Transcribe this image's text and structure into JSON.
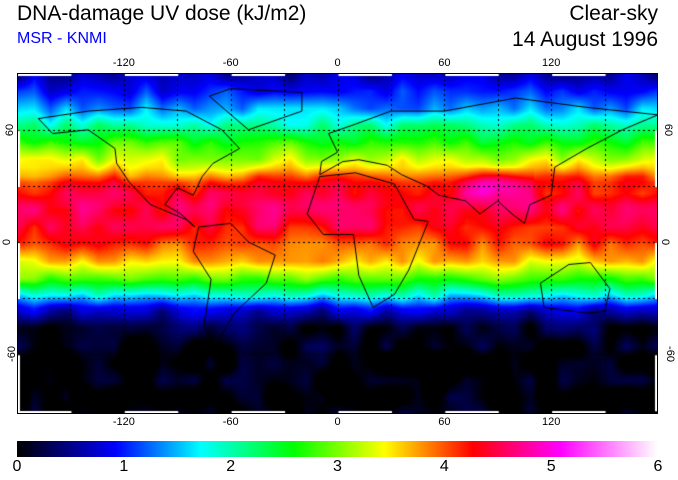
{
  "header": {
    "title": "DNA-damage UV dose (kJ/m2)",
    "source": "MSR - KNMI",
    "condition": "Clear-sky",
    "date": "14 August 1996"
  },
  "map": {
    "lon_ticks": [
      "-120",
      "-60",
      "0",
      "60",
      "120"
    ],
    "lon_values": [
      -120,
      -60,
      0,
      60,
      120
    ],
    "lat_ticks": [
      "60",
      "0",
      "-60"
    ],
    "lat_values": [
      60,
      0,
      -60
    ],
    "zonal_mean_dose": {
      "lat": [
        90,
        80,
        70,
        60,
        50,
        40,
        32,
        20,
        10,
        0,
        -10,
        -20,
        -28,
        -35,
        -45,
        -60,
        -90
      ],
      "value": [
        0.6,
        1.0,
        1.5,
        2.2,
        2.9,
        3.5,
        4.2,
        4.5,
        4.4,
        4.1,
        3.6,
        2.8,
        1.8,
        0.8,
        0.2,
        0.0,
        0.0
      ]
    }
  },
  "colorbar": {
    "labels": [
      "0",
      "1",
      "2",
      "3",
      "4",
      "5",
      "6"
    ],
    "range": [
      0,
      6
    ],
    "stops": [
      {
        "v": 0,
        "c": "#000000"
      },
      {
        "v": 0.92,
        "c": "#0000ff"
      },
      {
        "v": 1.72,
        "c": "#00ffff"
      },
      {
        "v": 2.59,
        "c": "#00ff00"
      },
      {
        "v": 3.44,
        "c": "#ffff00"
      },
      {
        "v": 4.27,
        "c": "#ff0000"
      },
      {
        "v": 5.09,
        "c": "#ff00ff"
      },
      {
        "v": 6,
        "c": "#ffffff"
      }
    ]
  }
}
